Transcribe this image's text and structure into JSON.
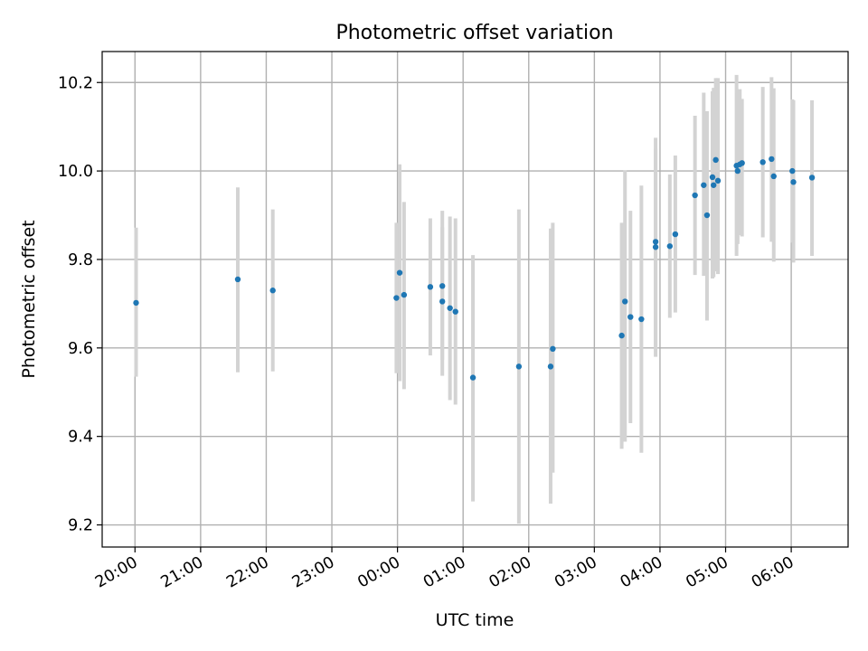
{
  "chart_data": {
    "type": "scatter",
    "title": "Photometric offset variation",
    "xlabel": "UTC time",
    "ylabel": "Photometric offset",
    "x_tick_labels": [
      "20:00",
      "21:00",
      "22:00",
      "23:00",
      "00:00",
      "01:00",
      "02:00",
      "03:00",
      "04:00",
      "05:00",
      "06:00"
    ],
    "y_ticks": [
      9.2,
      9.4,
      9.6,
      9.8,
      10.0,
      10.2
    ],
    "y_tick_labels": [
      "9.2",
      "9.4",
      "9.6",
      "9.8",
      "10.0",
      "10.2"
    ],
    "xlim": [
      "19:30",
      "06:52"
    ],
    "ylim": [
      9.15,
      10.27
    ],
    "grid": true,
    "colors": {
      "points": "#1f77b4",
      "error_bars": "#d3d3d3"
    },
    "points": [
      {
        "t": "20:01",
        "y": 9.702,
        "lo": 9.535,
        "hi": 9.872
      },
      {
        "t": "21:34",
        "y": 9.755,
        "lo": 9.545,
        "hi": 9.963
      },
      {
        "t": "22:06",
        "y": 9.73,
        "lo": 9.547,
        "hi": 9.913
      },
      {
        "t": "23:59",
        "y": 9.713,
        "lo": 9.543,
        "hi": 9.883
      },
      {
        "t": "00:02",
        "y": 9.77,
        "lo": 9.525,
        "hi": 10.015
      },
      {
        "t": "00:06",
        "y": 9.72,
        "lo": 9.507,
        "hi": 9.93
      },
      {
        "t": "00:30",
        "y": 9.738,
        "lo": 9.583,
        "hi": 9.893
      },
      {
        "t": "00:41",
        "y": 9.74,
        "lo": 9.573,
        "hi": 9.91
      },
      {
        "t": "00:41",
        "y": 9.705,
        "lo": 9.537,
        "hi": 9.873
      },
      {
        "t": "00:48",
        "y": 9.69,
        "lo": 9.482,
        "hi": 9.897
      },
      {
        "t": "00:53",
        "y": 9.682,
        "lo": 9.472,
        "hi": 9.893
      },
      {
        "t": "01:09",
        "y": 9.533,
        "lo": 9.253,
        "hi": 9.81
      },
      {
        "t": "01:51",
        "y": 9.558,
        "lo": 9.203,
        "hi": 9.913
      },
      {
        "t": "02:20",
        "y": 9.558,
        "lo": 9.248,
        "hi": 9.87
      },
      {
        "t": "02:22",
        "y": 9.598,
        "lo": 9.318,
        "hi": 9.883
      },
      {
        "t": "03:25",
        "y": 9.628,
        "lo": 9.372,
        "hi": 9.883
      },
      {
        "t": "03:28",
        "y": 9.705,
        "lo": 9.388,
        "hi": 10.001
      },
      {
        "t": "03:33",
        "y": 9.67,
        "lo": 9.43,
        "hi": 9.91
      },
      {
        "t": "03:43",
        "y": 9.665,
        "lo": 9.363,
        "hi": 9.967
      },
      {
        "t": "03:56",
        "y": 9.84,
        "lo": 9.605,
        "hi": 10.075
      },
      {
        "t": "03:56",
        "y": 9.828,
        "lo": 9.58,
        "hi": 10.05
      },
      {
        "t": "04:09",
        "y": 9.83,
        "lo": 9.668,
        "hi": 9.992
      },
      {
        "t": "04:14",
        "y": 9.857,
        "lo": 9.68,
        "hi": 10.035
      },
      {
        "t": "04:32",
        "y": 9.945,
        "lo": 9.765,
        "hi": 10.125
      },
      {
        "t": "04:40",
        "y": 9.968,
        "lo": 9.763,
        "hi": 10.177
      },
      {
        "t": "04:43",
        "y": 9.9,
        "lo": 9.662,
        "hi": 10.135
      },
      {
        "t": "04:48",
        "y": 9.986,
        "lo": 9.757,
        "hi": 10.18
      },
      {
        "t": "04:49",
        "y": 9.968,
        "lo": 9.76,
        "hi": 10.188
      },
      {
        "t": "04:51",
        "y": 10.025,
        "lo": 9.773,
        "hi": 10.21
      },
      {
        "t": "04:53",
        "y": 9.978,
        "lo": 9.767,
        "hi": 10.21
      },
      {
        "t": "05:10",
        "y": 10.012,
        "lo": 9.808,
        "hi": 10.217
      },
      {
        "t": "05:11",
        "y": 10.0,
        "lo": 9.835,
        "hi": 10.177
      },
      {
        "t": "05:13",
        "y": 10.015,
        "lo": 9.855,
        "hi": 10.185
      },
      {
        "t": "05:15",
        "y": 10.018,
        "lo": 9.852,
        "hi": 10.163
      },
      {
        "t": "05:34",
        "y": 10.02,
        "lo": 9.85,
        "hi": 10.19
      },
      {
        "t": "05:42",
        "y": 10.027,
        "lo": 9.84,
        "hi": 10.212
      },
      {
        "t": "05:44",
        "y": 9.988,
        "lo": 9.795,
        "hi": 10.187
      },
      {
        "t": "06:01",
        "y": 10.0,
        "lo": 9.838,
        "hi": 10.162
      },
      {
        "t": "06:02",
        "y": 9.975,
        "lo": 9.793,
        "hi": 10.16
      },
      {
        "t": "06:19",
        "y": 9.985,
        "lo": 9.808,
        "hi": 10.16
      }
    ]
  }
}
